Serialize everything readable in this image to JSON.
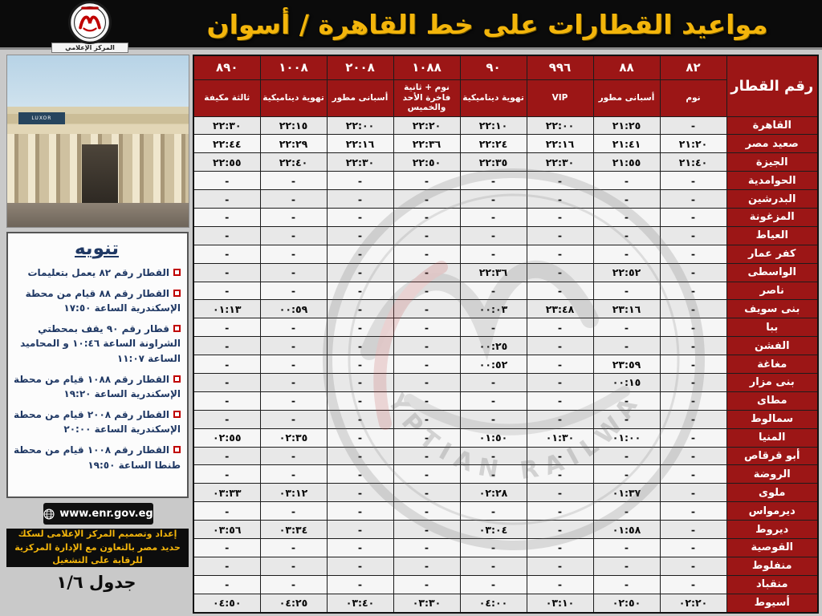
{
  "header": {
    "title": "مواعيد القطارات على خط القاهرة / أسوان",
    "logo_caption": "المركز الإعلامي",
    "logo_org": "EGYPTIAN RAILWAYS"
  },
  "notice": {
    "title": "تنويه",
    "items": [
      "القطار رقم ٨٢ يعمل بتعليمات",
      "القطار رقم ٨٨ قيام من محطة الإسكندرية الساعة ١٧:٥٠",
      "قطار رقم ٩٠ يقف بمحطتي الشراونة الساعة ١٠:٤٦ و المحاميد الساعة ١١:٠٧",
      "القطار رقم ١٠٨٨ قيام من محطة الإسكندرية الساعة ١٩:٢٠",
      "القطار رقم ٢٠٠٨ قيام من محطة الإسكندرية الساعة ٢٠:٠٠",
      "القطار رقم ١٠٠٨ قيام من محطة طنطا الساعة ١٩:٥٠"
    ]
  },
  "footer": {
    "website": "www.enr.gov.eg",
    "credit": "إعداد وتصميم المركز الإعلامى لسكك حديد مصر بالتعاون مع الإدارة المركزية للرقابة على التشغيل",
    "sheet": "جدول ١/٦"
  },
  "watermark": "EGYPTIAN RAILWAYS",
  "colors": {
    "maroon": "#9c1616",
    "banner_black": "#0b0b0b",
    "title_yellow": "#f3b50b",
    "notice_navy": "#1f3864",
    "bullet_red": "#c00000"
  },
  "table": {
    "header_label": "رقم القطار",
    "trains": [
      {
        "number": "٨٢",
        "class": "نوم"
      },
      {
        "number": "٨٨",
        "class": "أسبانى مطور"
      },
      {
        "number": "٩٩٦",
        "class": "VIP"
      },
      {
        "number": "٩٠",
        "class": "تهوية ديناميكية"
      },
      {
        "number": "١٠٨٨",
        "class": "نوم + ثانية فاخرة الأحد والخميس"
      },
      {
        "number": "٢٠٠٨",
        "class": "أسبانى مطور"
      },
      {
        "number": "١٠٠٨",
        "class": "تهوية ديناميكية"
      },
      {
        "number": "٨٩٠",
        "class": "ثالثة مكيفة"
      }
    ],
    "rows": [
      {
        "station": "القاهرة",
        "times": [
          "-",
          "٢١:٢٥",
          "٢٢:٠٠",
          "٢٢:١٠",
          "٢٢:٢٠",
          "٢٢:٠٠",
          "٢٢:١٥",
          "٢٢:٣٠"
        ]
      },
      {
        "station": "صعيد مصر",
        "times": [
          "٢١:٢٠",
          "٢١:٤١",
          "٢٢:١٦",
          "٢٢:٢٤",
          "٢٢:٣٦",
          "٢٢:١٦",
          "٢٢:٢٩",
          "٢٢:٤٤"
        ]
      },
      {
        "station": "الجيزة",
        "times": [
          "٢١:٤٠",
          "٢١:٥٥",
          "٢٢:٣٠",
          "٢٢:٣٥",
          "٢٢:٥٠",
          "٢٢:٣٠",
          "٢٢:٤٠",
          "٢٢:٥٥"
        ]
      },
      {
        "station": "الحوامدية",
        "times": [
          "-",
          "-",
          "-",
          "-",
          "-",
          "-",
          "-",
          "-"
        ]
      },
      {
        "station": "البدرشين",
        "times": [
          "-",
          "-",
          "-",
          "-",
          "-",
          "-",
          "-",
          "-"
        ]
      },
      {
        "station": "المزغونة",
        "times": [
          "-",
          "-",
          "-",
          "-",
          "-",
          "-",
          "-",
          "-"
        ]
      },
      {
        "station": "العياط",
        "times": [
          "-",
          "-",
          "-",
          "-",
          "-",
          "-",
          "-",
          "-"
        ]
      },
      {
        "station": "كفر عمار",
        "times": [
          "-",
          "-",
          "-",
          "-",
          "-",
          "-",
          "-",
          "-"
        ]
      },
      {
        "station": "الواسطى",
        "times": [
          "-",
          "٢٢:٥٢",
          "-",
          "٢٢:٣٦",
          "-",
          "-",
          "-",
          "-"
        ]
      },
      {
        "station": "ناصر",
        "times": [
          "-",
          "-",
          "-",
          "-",
          "-",
          "-",
          "-",
          "-"
        ]
      },
      {
        "station": "بنى سويف",
        "times": [
          "-",
          "٢٣:١٦",
          "٢٣:٤٨",
          "٠٠:٠٣",
          "-",
          "-",
          "٠٠:٥٩",
          "٠١:١٣"
        ]
      },
      {
        "station": "ببا",
        "times": [
          "-",
          "-",
          "-",
          "-",
          "-",
          "-",
          "-",
          "-"
        ]
      },
      {
        "station": "الفشن",
        "times": [
          "-",
          "-",
          "-",
          "٠٠:٢٥",
          "-",
          "-",
          "-",
          "-"
        ]
      },
      {
        "station": "مغاغة",
        "times": [
          "-",
          "٢٣:٥٩",
          "-",
          "٠٠:٥٢",
          "-",
          "-",
          "-",
          "-"
        ]
      },
      {
        "station": "بنى مزار",
        "times": [
          "-",
          "٠٠:١٥",
          "-",
          "-",
          "-",
          "-",
          "-",
          "-"
        ]
      },
      {
        "station": "مطاى",
        "times": [
          "-",
          "-",
          "-",
          "-",
          "-",
          "-",
          "-",
          "-"
        ]
      },
      {
        "station": "سمالوط",
        "times": [
          "-",
          "-",
          "-",
          "-",
          "-",
          "-",
          "-",
          "-"
        ]
      },
      {
        "station": "المنيا",
        "times": [
          "-",
          "٠١:٠٠",
          "٠١:٣٠",
          "٠١:٥٠",
          "-",
          "-",
          "٠٢:٣٥",
          "٠٢:٥٥"
        ]
      },
      {
        "station": "أبو قرقاص",
        "times": [
          "-",
          "-",
          "-",
          "-",
          "-",
          "-",
          "-",
          "-"
        ]
      },
      {
        "station": "الروضة",
        "times": [
          "-",
          "-",
          "-",
          "-",
          "-",
          "-",
          "-",
          "-"
        ]
      },
      {
        "station": "ملوى",
        "times": [
          "-",
          "٠١:٣٧",
          "-",
          "٠٢:٢٨",
          "-",
          "-",
          "٠٣:١٢",
          "٠٣:٣٣"
        ]
      },
      {
        "station": "ديرمواس",
        "times": [
          "-",
          "-",
          "-",
          "-",
          "-",
          "-",
          "-",
          "-"
        ]
      },
      {
        "station": "ديروط",
        "times": [
          "-",
          "٠١:٥٨",
          "-",
          "٠٣:٠٤",
          "-",
          "-",
          "٠٣:٣٤",
          "٠٣:٥٦"
        ]
      },
      {
        "station": "القوصية",
        "times": [
          "-",
          "-",
          "-",
          "-",
          "-",
          "-",
          "-",
          "-"
        ]
      },
      {
        "station": "منفلوط",
        "times": [
          "-",
          "-",
          "-",
          "-",
          "-",
          "-",
          "-",
          "-"
        ]
      },
      {
        "station": "منقباد",
        "times": [
          "-",
          "-",
          "-",
          "-",
          "-",
          "-",
          "-",
          "-"
        ]
      },
      {
        "station": "أسيوط",
        "times": [
          "٠٢:٢٠",
          "٠٢:٥٠",
          "٠٣:١٠",
          "٠٤:٠٠",
          "٠٣:٣٠",
          "٠٣:٤٠",
          "٠٤:٢٥",
          "٠٤:٥٠"
        ]
      }
    ]
  }
}
